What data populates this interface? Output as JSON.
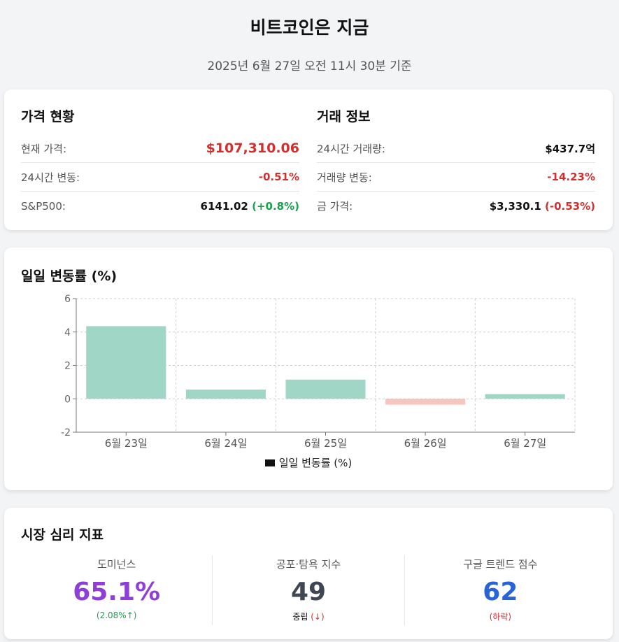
{
  "header": {
    "title": "비트코인은 지금",
    "subtitle": "2025년 6월 27일 오전 11시 30분 기준"
  },
  "price": {
    "title": "가격 현황",
    "current_label": "현재 가격:",
    "current_value": "$107,310.06",
    "change_label": "24시간 변동:",
    "change_value": "-0.51%",
    "sp_label": "S&P500:",
    "sp_value": "6141.02",
    "sp_change": "(+0.8%)"
  },
  "trade": {
    "title": "거래 정보",
    "volume_label": "24시간 거래량:",
    "volume_value": "$437.7억",
    "volume_change_label": "거래량 변동:",
    "volume_change_value": "-14.23%",
    "gold_label": "금 가격:",
    "gold_value": "$3,330.1",
    "gold_change": "(-0.53%)"
  },
  "chart_card": {
    "title": "일일 변동률 (%)"
  },
  "chart_data": {
    "type": "bar",
    "title": "일일 변동률 (%)",
    "categories": [
      "6월 23일",
      "6월 24일",
      "6월 25일",
      "6월 26일",
      "6월 27일"
    ],
    "series": [
      {
        "name": "일일 변동률 (%)",
        "values": [
          4.35,
          0.55,
          1.15,
          -0.35,
          0.28
        ]
      }
    ],
    "ylim": [
      -2,
      6
    ],
    "yticks": [
      -2,
      0,
      2,
      4,
      6
    ],
    "grid": true,
    "legend": "bottom",
    "colors": {
      "positive": "#a0d6c5",
      "negative": "#f5c6c0"
    }
  },
  "sentiment": {
    "title": "시장 심리 지표",
    "dominance": {
      "label": "도미넌스",
      "value": "65.1%",
      "sub": "(2.08%↑)",
      "color": "#8e3fd8"
    },
    "fear_greed": {
      "label": "공포·탐욕 지수",
      "value": "49",
      "sub_main": "중립",
      "sub_arrow": "(↓)",
      "color": "#3f4753"
    },
    "trends": {
      "label": "구글 트렌드 점수",
      "value": "62",
      "sub": "(하락)",
      "color": "#2864d8"
    }
  }
}
